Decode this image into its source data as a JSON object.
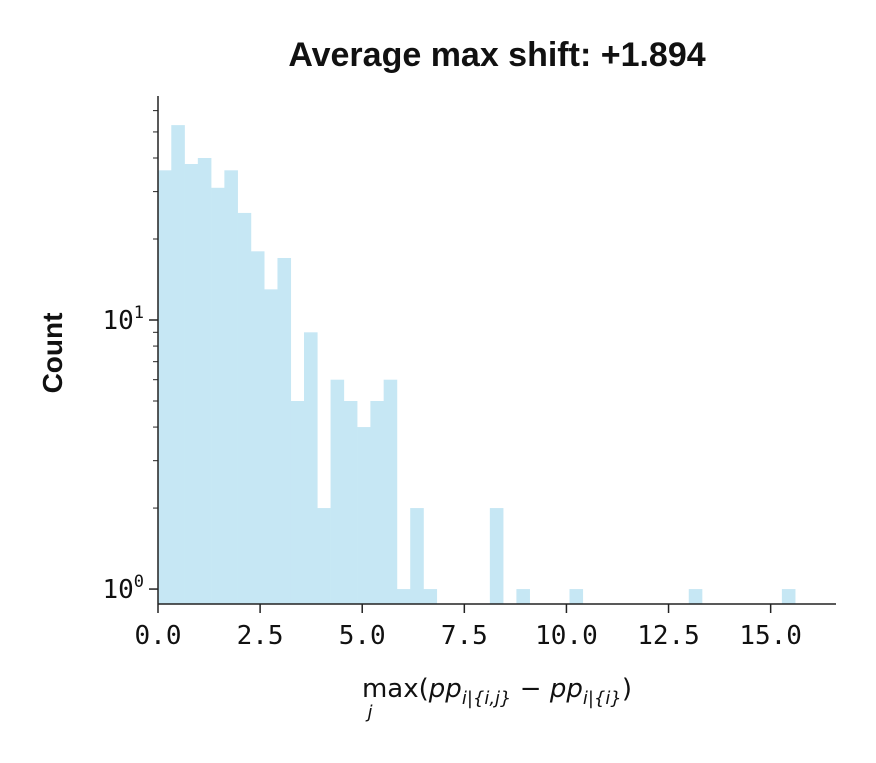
{
  "chart_data": {
    "type": "bar",
    "subtype": "histogram",
    "title": "Average max shift: +1.894",
    "ylabel": "Count",
    "xlabel": {
      "op": "max",
      "op_sub": "j",
      "open": "(",
      "term1": "pp",
      "term1_sub": "i|{i,j}",
      "minus": " − ",
      "term2": "pp",
      "term2_sub": "i|{i}",
      "close": ")"
    },
    "x_scale": "linear",
    "y_scale": "log",
    "xlim": [
      0,
      16.6
    ],
    "ylim": [
      0.88,
      68
    ],
    "x_ticks": [
      0,
      2.5,
      5,
      7.5,
      10,
      12.5,
      15
    ],
    "x_tick_labels": [
      "0.0",
      "2.5",
      "5.0",
      "7.5",
      "10.0",
      "12.5",
      "15.0"
    ],
    "y_ticks": [
      {
        "value": 1,
        "base": "10",
        "exp": "0"
      },
      {
        "value": 10,
        "base": "10",
        "exp": "1"
      }
    ],
    "bar_color": "#c6e7f4",
    "bin_width": 0.325,
    "bins": [
      {
        "x0": 0.0,
        "count": 36
      },
      {
        "x0": 0.325,
        "count": 53
      },
      {
        "x0": 0.65,
        "count": 38
      },
      {
        "x0": 0.975,
        "count": 40
      },
      {
        "x0": 1.3,
        "count": 31
      },
      {
        "x0": 1.625,
        "count": 36
      },
      {
        "x0": 1.95,
        "count": 25
      },
      {
        "x0": 2.275,
        "count": 18
      },
      {
        "x0": 2.6,
        "count": 13
      },
      {
        "x0": 2.925,
        "count": 17
      },
      {
        "x0": 3.25,
        "count": 5
      },
      {
        "x0": 3.575,
        "count": 9
      },
      {
        "x0": 3.9,
        "count": 2
      },
      {
        "x0": 4.225,
        "count": 6
      },
      {
        "x0": 4.55,
        "count": 5
      },
      {
        "x0": 4.875,
        "count": 4
      },
      {
        "x0": 5.2,
        "count": 5
      },
      {
        "x0": 5.525,
        "count": 6
      },
      {
        "x0": 5.85,
        "count": 1
      },
      {
        "x0": 6.175,
        "count": 2
      },
      {
        "x0": 6.5,
        "count": 1
      },
      {
        "x0": 8.125,
        "count": 2
      },
      {
        "x0": 8.775,
        "count": 1
      },
      {
        "x0": 10.075,
        "count": 1
      },
      {
        "x0": 12.995,
        "count": 1
      },
      {
        "x0": 15.275,
        "count": 1
      }
    ],
    "grid": false,
    "legend": "none"
  }
}
